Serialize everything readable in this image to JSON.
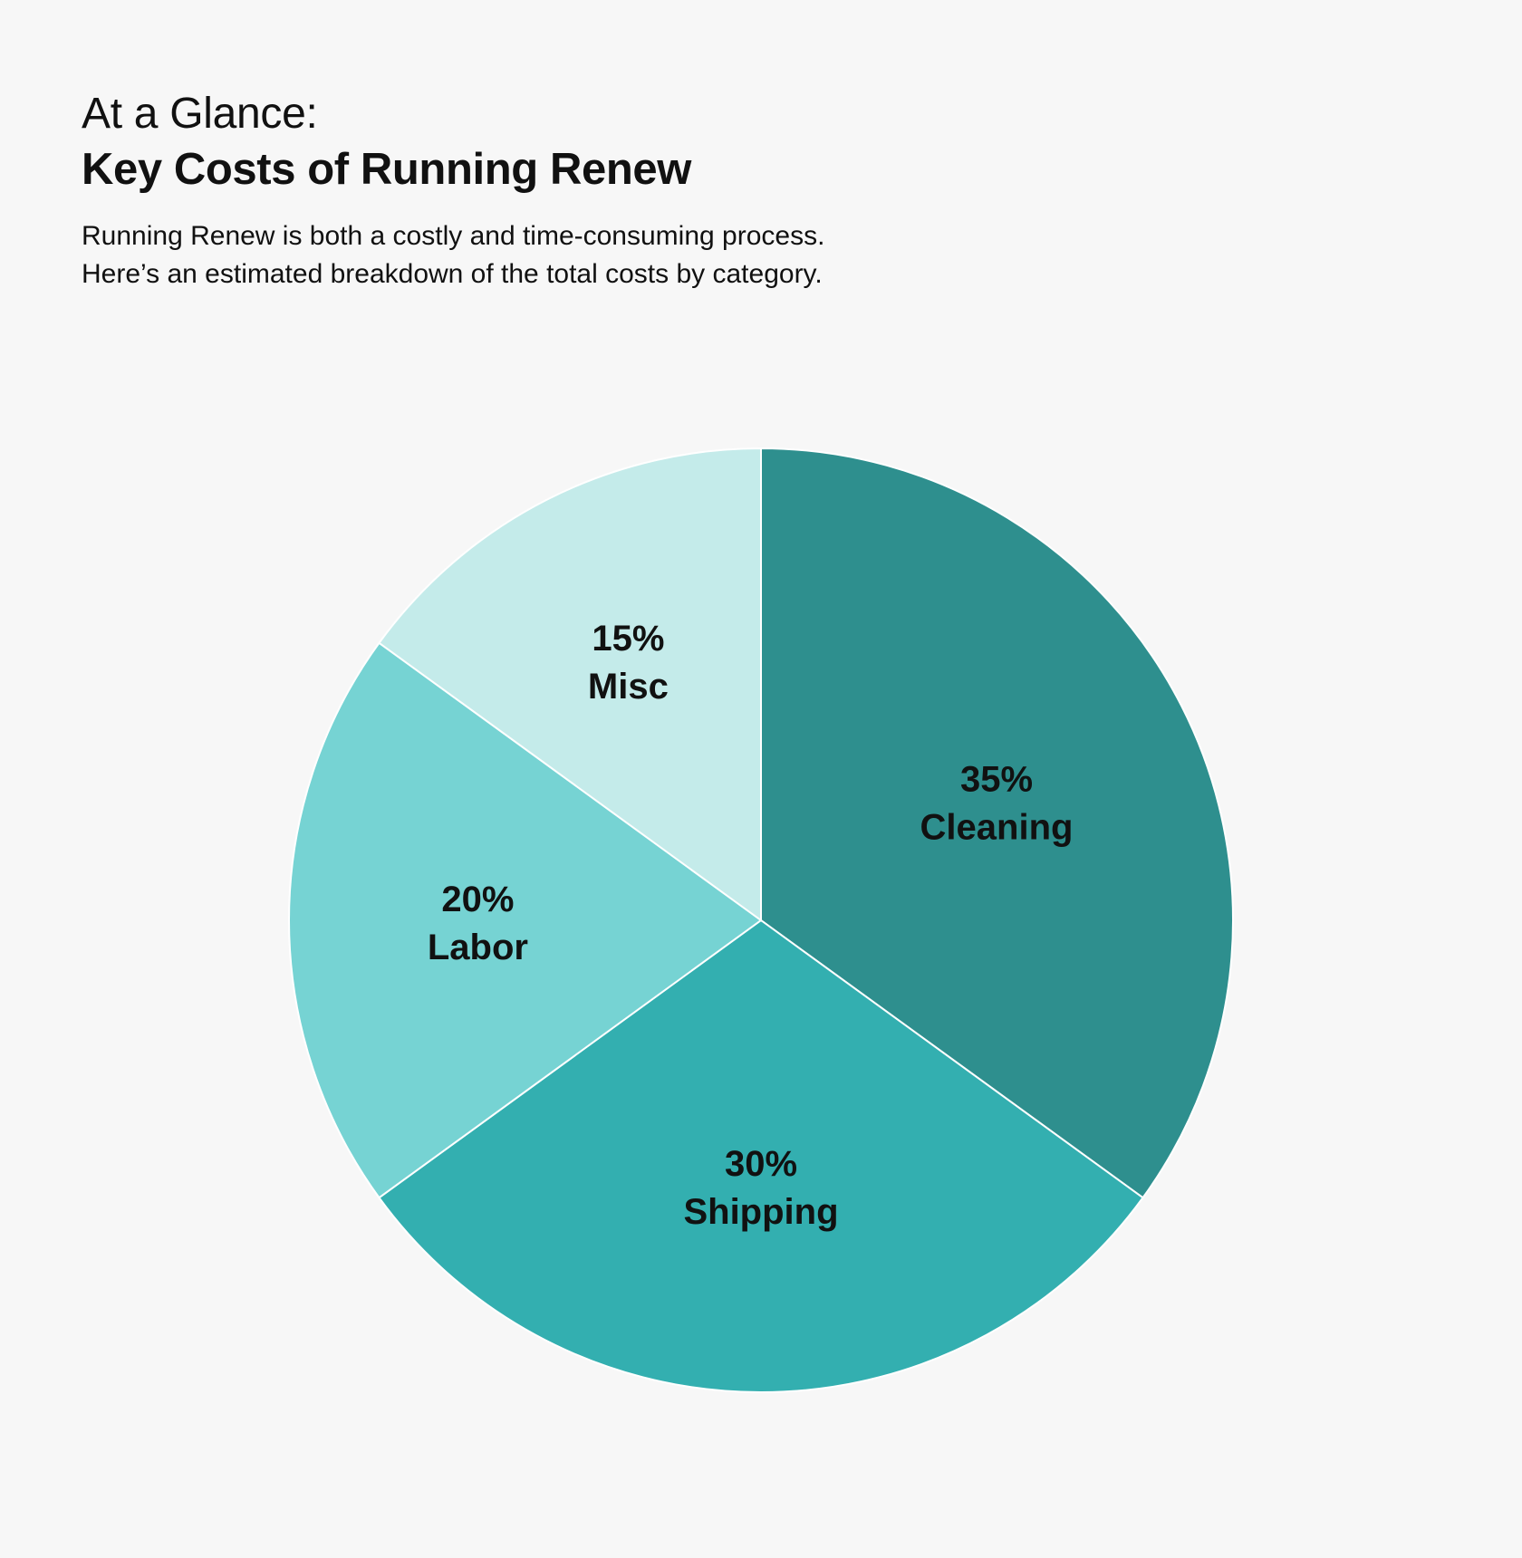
{
  "header": {
    "eyebrow": "At a Glance:",
    "title": "Key Costs of Running Renew",
    "subtitle_line1": "Running Renew is both a costly and time-consuming process.",
    "subtitle_line2": "Here’s an estimated breakdown of the total costs by category."
  },
  "chart_data": {
    "type": "pie",
    "title": "Key Costs of Running Renew",
    "unit": "%",
    "slices": [
      {
        "label": "Cleaning",
        "value": 35,
        "display": "35%",
        "color": "#2e8f8e"
      },
      {
        "label": "Shipping",
        "value": 30,
        "display": "30%",
        "color": "#33afb0"
      },
      {
        "label": "Labor",
        "value": 20,
        "display": "20%",
        "color": "#76d3d3"
      },
      {
        "label": "Misc",
        "value": 15,
        "display": "15%",
        "color": "#c4ebea"
      }
    ],
    "start_angle_deg": 0,
    "direction": "clockwise",
    "slice_border_color": "#ffffff"
  }
}
